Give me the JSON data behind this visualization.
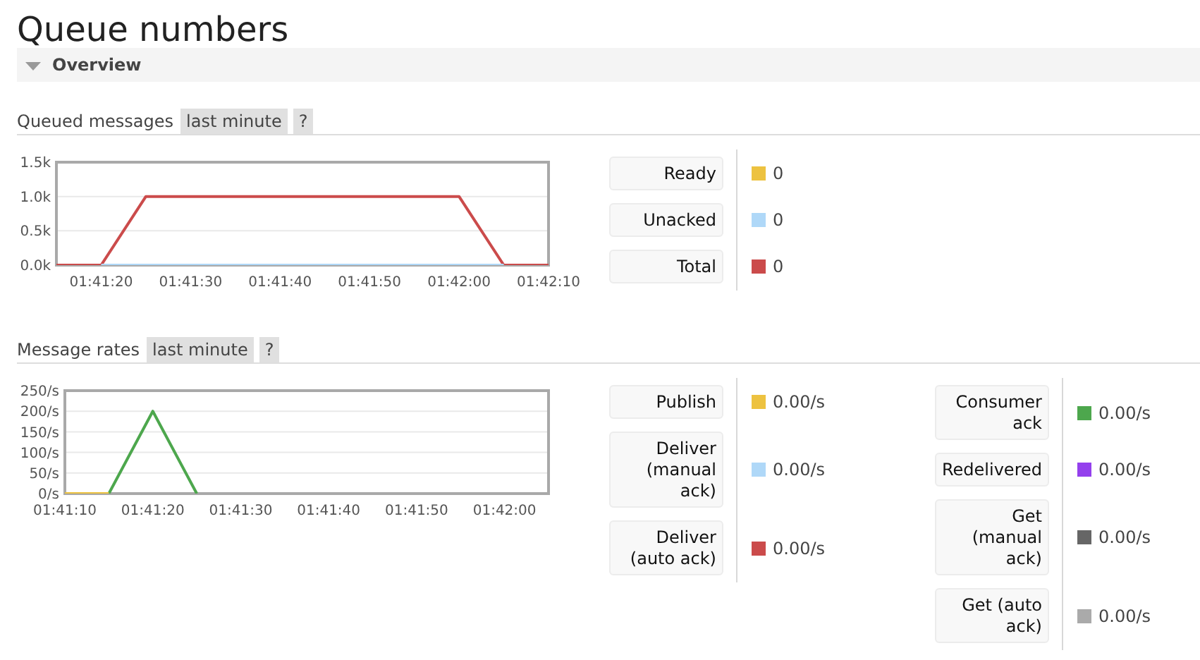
{
  "chart_data": [
    {
      "type": "line",
      "title": "Queued messages",
      "annotations": [
        "Queue numbers",
        "Overview",
        "last minute",
        "?",
        "0",
        "0",
        "0"
      ],
      "x": [
        1.6875,
        1.688889,
        1.690278,
        1.7,
        1.701389,
        1.702778
      ],
      "series": [
        {
          "name": "Ready",
          "color": "#edc240",
          "values": [
            null,
            null,
            null,
            null,
            null,
            null
          ]
        },
        {
          "name": "Unacked",
          "color": "#afd8f8",
          "x": [
            1.688889,
            1.701389
          ],
          "values": [
            0,
            0
          ]
        },
        {
          "name": "Total",
          "color": "#cb4b4b",
          "values": [
            0,
            0,
            1000,
            1000,
            0,
            0
          ]
        }
      ],
      "xlim": [
        1.6875,
        1.702778
      ],
      "xticks": [
        {
          "value": 1.688889,
          "label": "01:41:20"
        },
        {
          "value": 1.691667,
          "label": "01:41:30"
        },
        {
          "value": 1.694444,
          "label": "01:41:40"
        },
        {
          "value": 1.697222,
          "label": "01:41:50"
        },
        {
          "value": 1.7,
          "label": "01:42:00"
        },
        {
          "value": 1.702778,
          "label": "01:42:10"
        }
      ],
      "ylim": [
        0,
        1500
      ],
      "yticks": [
        {
          "value": 0,
          "label": "0.0k"
        },
        {
          "value": 500,
          "label": "0.5k"
        },
        {
          "value": 1000,
          "label": "1.0k"
        },
        {
          "value": 1500,
          "label": "1.5k"
        }
      ],
      "grid": "y",
      "legend": "right",
      "marker": "none"
    },
    {
      "type": "line",
      "title": "Message rates",
      "annotations": [
        "last minute",
        "?",
        "0.00/s",
        "0.00/s",
        "0.00/s",
        "0.00/s",
        "0.00/s",
        "0.00/s",
        "0.00/s"
      ],
      "x": [
        1.686111,
        1.6875,
        1.688889,
        1.690278
      ],
      "series": [
        {
          "name": "Publish",
          "color": "#edc240",
          "values": [
            0,
            0,
            null,
            null
          ]
        },
        {
          "name": "Deliver (manual ack)",
          "color": "#afd8f8",
          "values": [
            null,
            null,
            null,
            null
          ]
        },
        {
          "name": "Deliver (auto ack)",
          "color": "#cb4b4b",
          "values": [
            null,
            null,
            null,
            null
          ]
        },
        {
          "name": "Consumer ack",
          "color": "#4da74d",
          "values": [
            null,
            0,
            200,
            0
          ]
        },
        {
          "name": "Redelivered",
          "color": "#9440ed",
          "values": [
            null,
            null,
            null,
            null
          ]
        },
        {
          "name": "Get (manual ack)",
          "color": "#666666",
          "values": [
            null,
            null,
            null,
            null
          ]
        },
        {
          "name": "Get (auto ack)",
          "color": "#aaaaaa",
          "values": [
            null,
            null,
            null,
            null
          ]
        }
      ],
      "xlim": [
        1.686111,
        1.701389
      ],
      "xticks": [
        {
          "value": 1.686111,
          "label": "01:41:10"
        },
        {
          "value": 1.688889,
          "label": "01:41:20"
        },
        {
          "value": 1.691667,
          "label": "01:41:30"
        },
        {
          "value": 1.694444,
          "label": "01:41:40"
        },
        {
          "value": 1.697222,
          "label": "01:41:50"
        },
        {
          "value": 1.7,
          "label": "01:42:00"
        }
      ],
      "ylim": [
        0,
        250
      ],
      "yticks": [
        {
          "value": 0,
          "label": "0/s"
        },
        {
          "value": 50,
          "label": "50/s"
        },
        {
          "value": 100,
          "label": "100/s"
        },
        {
          "value": 150,
          "label": "150/s"
        },
        {
          "value": 200,
          "label": "200/s"
        },
        {
          "value": 250,
          "label": "250/s"
        }
      ],
      "grid": "y",
      "legend": "right",
      "marker": "none"
    }
  ]
}
